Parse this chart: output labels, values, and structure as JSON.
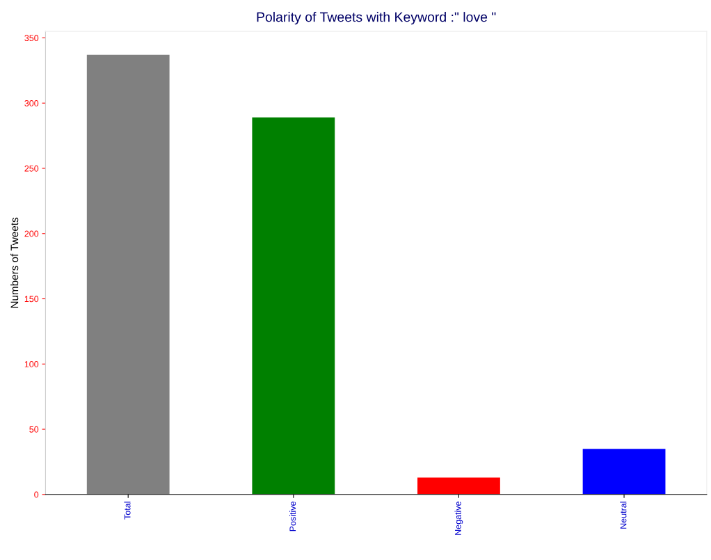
{
  "chart_data": {
    "type": "bar",
    "title": "Polarity of Tweets with Keyword :\" love \"",
    "ylabel": "Numbers of Tweets",
    "categories": [
      "Total",
      "Positive",
      "Negative",
      "Neutral"
    ],
    "values": [
      337,
      289,
      13,
      35
    ],
    "colors": [
      "#808080",
      "#008000",
      "#ff0000",
      "#0000ff"
    ],
    "ylim": [
      0,
      355
    ],
    "yticks": [
      0,
      50,
      100,
      150,
      200,
      250,
      300,
      350
    ],
    "grid": false,
    "legend": false
  }
}
